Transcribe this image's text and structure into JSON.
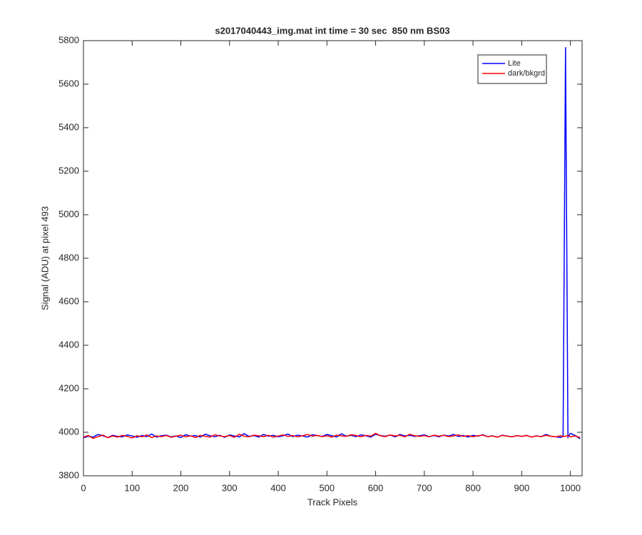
{
  "chart_data": {
    "type": "line",
    "title": "s2017040443_img.mat int time = 30 sec  850 nm BS03",
    "x_label": "Track Pixels",
    "y_label": "Signal (ADU) at pixel 493",
    "x": [
      0,
      10,
      20,
      30,
      40,
      50,
      60,
      70,
      80,
      90,
      100,
      110,
      120,
      130,
      140,
      150,
      160,
      170,
      180,
      190,
      200,
      210,
      220,
      230,
      240,
      250,
      260,
      270,
      280,
      290,
      300,
      310,
      320,
      330,
      340,
      350,
      360,
      370,
      380,
      390,
      400,
      410,
      420,
      430,
      440,
      450,
      460,
      470,
      480,
      490,
      500,
      510,
      520,
      530,
      540,
      550,
      560,
      570,
      580,
      590,
      600,
      610,
      620,
      630,
      640,
      650,
      660,
      670,
      680,
      690,
      700,
      710,
      720,
      730,
      740,
      750,
      760,
      770,
      780,
      790,
      800,
      810,
      820,
      830,
      840,
      850,
      860,
      870,
      880,
      890,
      900,
      910,
      920,
      930,
      940,
      950,
      960,
      970,
      980,
      985,
      990,
      995,
      1000,
      1010,
      1020
    ],
    "series": [
      {
        "name": "Lite",
        "color": "#0000ff",
        "values": [
          3975,
          3982,
          3978,
          3990,
          3984,
          3976,
          3986,
          3981,
          3979,
          3988,
          3983,
          3977,
          3985,
          3980,
          3992,
          3978,
          3984,
          3987,
          3979,
          3983,
          3976,
          3989,
          3982,
          3985,
          3978,
          3991,
          3984,
          3980,
          3986,
          3977,
          3988,
          3983,
          3979,
          3994,
          3981,
          3985,
          3978,
          3990,
          3982,
          3986,
          3979,
          3984,
          3992,
          3980,
          3987,
          3983,
          3978,
          3989,
          3985,
          3981,
          3990,
          3984,
          3979,
          3993,
          3982,
          3986,
          3980,
          3988,
          3984,
          3978,
          3991,
          3985,
          3982,
          3987,
          3979,
          3990,
          3983,
          3986,
          3981,
          3984,
          3988,
          3980,
          3985,
          3979,
          3987,
          3983,
          3990,
          3981,
          3985,
          3978,
          3986,
          3982,
          3989,
          3980,
          3984,
          3977,
          3987,
          3983,
          3979,
          3985,
          3981,
          3986,
          3978,
          3984,
          3980,
          3990,
          3982,
          3979,
          3976,
          3982,
          5770,
          3978,
          3995,
          3985,
          3970
        ]
      },
      {
        "name": "dark/bkgrd",
        "color": "#ff0000",
        "values": [
          3978,
          3985,
          3972,
          3980,
          3987,
          3975,
          3983,
          3978,
          3986,
          3981,
          3974,
          3984,
          3979,
          3988,
          3976,
          3983,
          3980,
          3985,
          3977,
          3982,
          3987,
          3979,
          3984,
          3976,
          3986,
          3981,
          3978,
          3989,
          3983,
          3980,
          3985,
          3977,
          3991,
          3982,
          3979,
          3987,
          3984,
          3980,
          3986,
          3978,
          3983,
          3988,
          3981,
          3985,
          3979,
          3984,
          3990,
          3982,
          3986,
          3980,
          3984,
          3978,
          3987,
          3983,
          3981,
          3989,
          3985,
          3979,
          3986,
          3982,
          3995,
          3984,
          3980,
          3988,
          3983,
          3986,
          3979,
          3991,
          3984,
          3981,
          3985,
          3979,
          3987,
          3982,
          3986,
          3980,
          3983,
          3988,
          3981,
          3985,
          3979,
          3984,
          3987,
          3980,
          3983,
          3977,
          3986,
          3982,
          3979,
          3984,
          3981,
          3985,
          3978,
          3983,
          3980,
          3986,
          3982,
          3979,
          3984,
          3980,
          3982,
          3985,
          3979,
          3983,
          3976
        ]
      }
    ],
    "xlim": [
      0,
      1024
    ],
    "xticks": [
      0,
      100,
      200,
      300,
      400,
      500,
      600,
      700,
      800,
      900,
      1000
    ],
    "ylim": [
      3800,
      5800
    ],
    "yticks": [
      3800,
      4000,
      4200,
      4400,
      4600,
      4800,
      5000,
      5200,
      5400,
      5600,
      5800
    ],
    "legend": "northeast",
    "grid": false
  }
}
